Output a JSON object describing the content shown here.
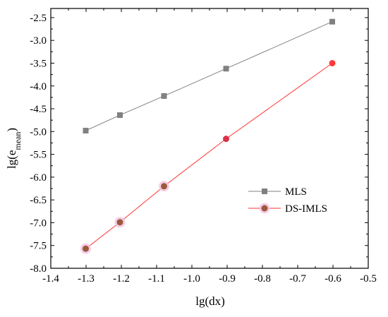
{
  "chart_data": {
    "type": "line",
    "title": "",
    "xlabel": "lg(dx)",
    "ylabel": {
      "prefix": "lg(e",
      "subscript": "mean",
      "suffix": ")"
    },
    "xlim": [
      -1.4,
      -0.5
    ],
    "ylim": [
      -8.0,
      -2.3
    ],
    "xticks": [
      "-1.4",
      "-1.3",
      "-1.2",
      "-1.1",
      "-1.0",
      "-0.9",
      "-0.8",
      "-0.7",
      "-0.6",
      "-0.5"
    ],
    "yticks": [
      "-8.0",
      "-7.5",
      "-7.0",
      "-6.5",
      "-6.0",
      "-5.5",
      "-5.0",
      "-4.5",
      "-4.0",
      "-3.5",
      "-3.0",
      "-2.5"
    ],
    "grid": false,
    "legend_position": "right-center",
    "series": [
      {
        "name": "MLS",
        "color": "#808080",
        "marker": "square",
        "x": [
          -1.301,
          -1.204,
          -1.079,
          -0.903,
          -0.602
        ],
        "y": [
          -4.98,
          -4.64,
          -4.22,
          -3.62,
          -2.59
        ]
      },
      {
        "name": "DS-IMLS",
        "color": "#ff3030",
        "marker": "circle",
        "marker_colors": [
          "#9b5a3c",
          "#9b5a3c",
          "#9b5a3c",
          "#d9314a",
          "#ff3a3a"
        ],
        "x": [
          -1.301,
          -1.204,
          -1.079,
          -0.903,
          -0.602
        ],
        "y": [
          -7.57,
          -6.99,
          -6.2,
          -5.16,
          -3.5
        ]
      }
    ]
  }
}
